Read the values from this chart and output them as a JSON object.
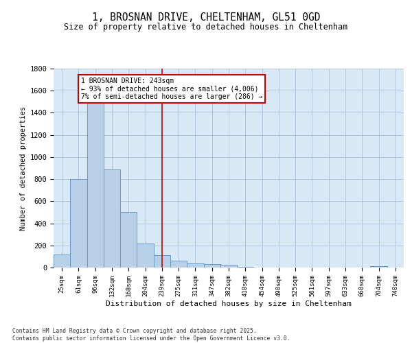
{
  "title_line1": "1, BROSNAN DRIVE, CHELTENHAM, GL51 0GD",
  "title_line2": "Size of property relative to detached houses in Cheltenham",
  "xlabel": "Distribution of detached houses by size in Cheltenham",
  "ylabel": "Number of detached properties",
  "categories": [
    "25sqm",
    "61sqm",
    "96sqm",
    "132sqm",
    "168sqm",
    "204sqm",
    "239sqm",
    "275sqm",
    "311sqm",
    "347sqm",
    "382sqm",
    "418sqm",
    "454sqm",
    "490sqm",
    "525sqm",
    "561sqm",
    "597sqm",
    "633sqm",
    "668sqm",
    "704sqm",
    "740sqm"
  ],
  "values": [
    120,
    800,
    1500,
    885,
    500,
    215,
    110,
    65,
    40,
    30,
    25,
    8,
    0,
    0,
    0,
    0,
    0,
    0,
    0,
    15,
    0
  ],
  "bar_color": "#b8d0e8",
  "bar_edge_color": "#6699cc",
  "grid_color": "#b0c8e0",
  "background_color": "#d8e8f4",
  "vline_x": 6,
  "vline_color": "#cc0000",
  "annotation_text": "1 BROSNAN DRIVE: 243sqm\n← 93% of detached houses are smaller (4,006)\n7% of semi-detached houses are larger (286) →",
  "annotation_box_color": "#cc0000",
  "ylim": [
    0,
    1800
  ],
  "yticks": [
    0,
    200,
    400,
    600,
    800,
    1000,
    1200,
    1400,
    1600,
    1800
  ],
  "footer_line1": "Contains HM Land Registry data © Crown copyright and database right 2025.",
  "footer_line2": "Contains public sector information licensed under the Open Government Licence v3.0."
}
